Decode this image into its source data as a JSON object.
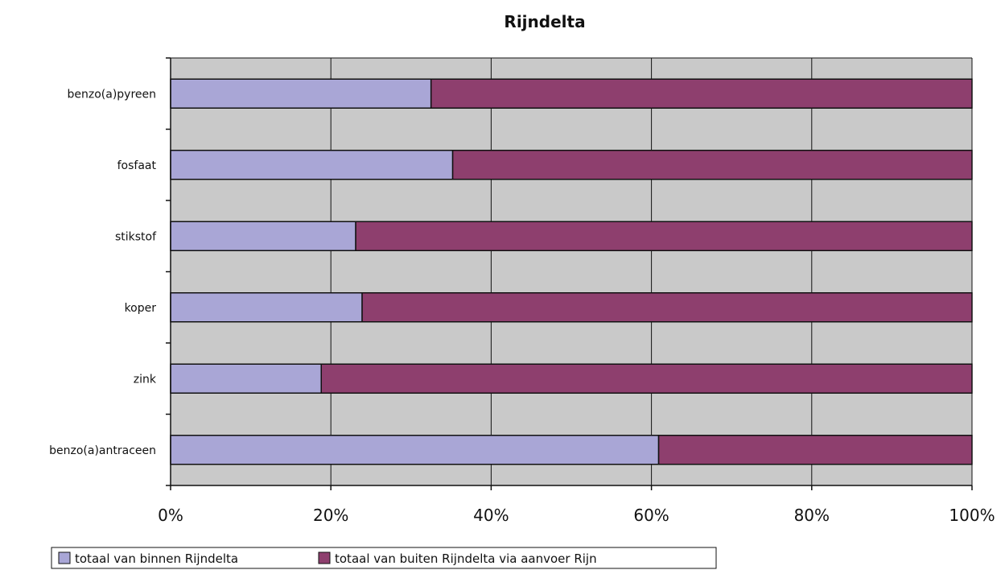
{
  "chart_data": {
    "type": "bar",
    "orientation": "horizontal",
    "stacked": "percent",
    "title": "Rijndelta",
    "categories": [
      "benzo(a)pyreen",
      "fosfaat",
      "stikstof",
      "koper",
      "zink",
      "benzo(a)antraceen"
    ],
    "series": [
      {
        "name": "totaal van binnen Rijndelta",
        "values": [
          32.5,
          35.2,
          23.1,
          23.9,
          18.8,
          60.9
        ],
        "color": "#a9a6d6"
      },
      {
        "name": "totaal van buiten Rijndelta via aanvoer Rijn",
        "values": [
          67.5,
          64.8,
          76.9,
          76.1,
          81.2,
          39.1
        ],
        "color": "#8e3f6e"
      }
    ],
    "x_ticks": [
      "0%",
      "20%",
      "40%",
      "60%",
      "80%",
      "100%"
    ],
    "xlim": [
      0,
      100
    ],
    "xlabel": "",
    "ylabel": "",
    "grid": true,
    "plot_background": "#c9c9c9",
    "legend_position": "bottom"
  }
}
